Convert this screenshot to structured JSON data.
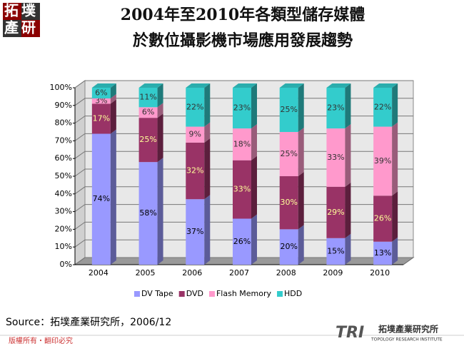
{
  "header": {
    "logo_top": "拓墣",
    "logo_bottom": "產研",
    "title_line1": "2004年至2010年各類型儲存媒體",
    "title_line2": "於數位攝影機市場應用發展趨勢"
  },
  "chart_data": {
    "type": "bar",
    "stacked": true,
    "grid": true,
    "legend": "bottom",
    "categories": [
      "2004",
      "2005",
      "2006",
      "2007",
      "2008",
      "2009",
      "2010"
    ],
    "ylim": [
      0,
      100
    ],
    "yticks": [
      {
        "value": 0,
        "label": "0%"
      },
      {
        "value": 10,
        "label": "10%"
      },
      {
        "value": 20,
        "label": "20%"
      },
      {
        "value": 30,
        "label": "30%"
      },
      {
        "value": 40,
        "label": "40%"
      },
      {
        "value": 50,
        "label": "50%"
      },
      {
        "value": 60,
        "label": "60%"
      },
      {
        "value": 70,
        "label": "70%"
      },
      {
        "value": 80,
        "label": "80%"
      },
      {
        "value": 90,
        "label": "90%"
      },
      {
        "value": 100,
        "label": "100%"
      }
    ],
    "series": [
      {
        "name": "DV Tape",
        "color": "#9999ff",
        "values": [
          74,
          58,
          37,
          26,
          20,
          15,
          13
        ],
        "value_labels": [
          "74%",
          "58%",
          "37%",
          "26%",
          "20%",
          "15%",
          "13%"
        ]
      },
      {
        "name": "DVD",
        "color": "#993366",
        "values": [
          17,
          25,
          32,
          33,
          30,
          29,
          26
        ],
        "value_labels": [
          "17%",
          "25%",
          "32%",
          "33%",
          "30%",
          "29%",
          "26%"
        ]
      },
      {
        "name": "Flash Memory",
        "color": "#ff99cc",
        "values": [
          3,
          6,
          9,
          18,
          25,
          33,
          39
        ],
        "value_labels": [
          "3%",
          "6%",
          "9%",
          "18%",
          "25%",
          "33%",
          "39%"
        ]
      },
      {
        "name": "HDD",
        "color": "#33cccc",
        "values": [
          6,
          11,
          22,
          23,
          25,
          23,
          22
        ],
        "value_labels": [
          "6%",
          "11%",
          "22%",
          "23%",
          "25%",
          "23%",
          "22%"
        ]
      }
    ]
  },
  "footer": {
    "source": "Source：拓墣產業研究所，2006/12",
    "copyright": "版權所有・翻印必究",
    "logo_mark": "TRI",
    "logo_name": "拓墣產業研究所",
    "logo_en": "TOPOLOGY RESEARCH INSTITUTE"
  }
}
